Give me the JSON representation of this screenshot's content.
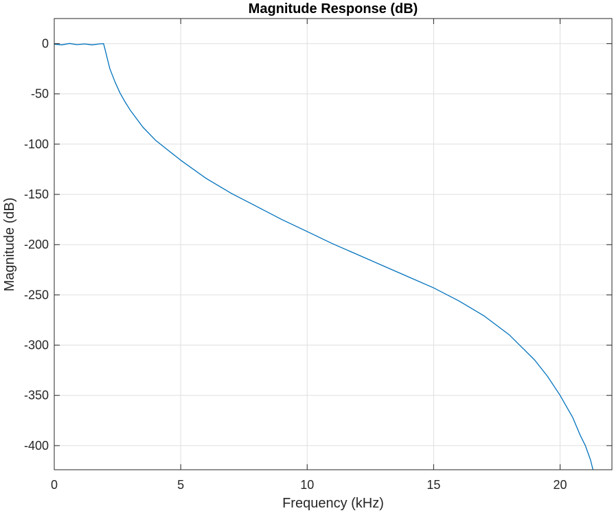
{
  "chart_data": {
    "type": "line",
    "title": "Magnitude Response (dB)",
    "xlabel": "Frequency (kHz)",
    "ylabel": "Magnitude (dB)",
    "xlim": [
      0,
      22.05
    ],
    "ylim": [
      -424,
      25
    ],
    "xticks": [
      0,
      5,
      10,
      15,
      20
    ],
    "yticks": [
      0,
      -50,
      -100,
      -150,
      -200,
      -250,
      -300,
      -350,
      -400
    ],
    "xtick_labels": [
      "0",
      "5",
      "10",
      "15",
      "20"
    ],
    "ytick_labels": [
      "0",
      "-50",
      "-100",
      "-150",
      "-200",
      "-250",
      "-300",
      "-350",
      "-400"
    ],
    "grid": true,
    "line_color": "#0072BD",
    "series": [
      {
        "x": [
          0,
          0.3,
          0.6,
          0.9,
          1.2,
          1.5,
          1.8,
          1.95,
          2.0,
          2.1,
          2.2,
          2.4,
          2.6,
          2.8,
          3.0,
          3.5,
          4.0,
          4.5,
          5.0,
          6.0,
          7.0,
          8.0,
          9.0,
          10.0,
          11.0,
          12.0,
          13.0,
          14.0,
          15.0,
          16.0,
          17.0,
          18.0,
          19.0,
          19.5,
          20.0,
          20.5,
          20.8,
          21.0,
          21.2,
          21.3
        ],
        "y": [
          -0.5,
          -1.2,
          0.2,
          -1.0,
          -0.3,
          -1.2,
          -0.2,
          0,
          -5,
          -15,
          -25,
          -38,
          -49,
          -58,
          -66,
          -83,
          -96,
          -106,
          -116,
          -134,
          -149,
          -162,
          -175,
          -187,
          -199,
          -210,
          -221,
          -232,
          -243,
          -256,
          -271,
          -290,
          -315,
          -331,
          -350,
          -372,
          -390,
          -400,
          -414,
          -424
        ]
      }
    ]
  }
}
